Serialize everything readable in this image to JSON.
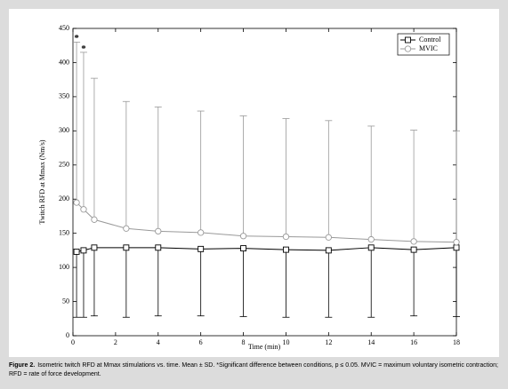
{
  "chart_data": {
    "type": "line",
    "x_label": "Time (min)",
    "y_label": "Twitch RFD at Mmax (Nm/s)",
    "x": [
      0.17,
      0.5,
      1,
      2.5,
      4,
      6,
      8,
      10,
      12,
      14,
      16,
      18
    ],
    "series": [
      {
        "name": "Control",
        "color": "#000000",
        "marker": "square",
        "error_direction": "down",
        "values": [
          123,
          125,
          129,
          129,
          129,
          127,
          128,
          126,
          125,
          129,
          126,
          129
        ],
        "errors": [
          96,
          98,
          100,
          102,
          100,
          98,
          100,
          99,
          98,
          102,
          97,
          101
        ]
      },
      {
        "name": "MVIC",
        "color": "#999999",
        "marker": "circle",
        "error_direction": "up",
        "values": [
          195,
          185,
          170,
          157,
          153,
          151,
          146,
          145,
          144,
          141,
          138,
          137
        ],
        "errors": [
          235,
          230,
          207,
          186,
          182,
          178,
          176,
          173,
          171,
          166,
          163,
          163
        ]
      }
    ],
    "annotations": [
      {
        "text": "*",
        "x": 0.17,
        "y": 440
      },
      {
        "text": "*",
        "x": 0.5,
        "y": 425
      }
    ],
    "xlim": [
      0,
      18
    ],
    "xticks": [
      0,
      2,
      4,
      6,
      8,
      10,
      12,
      14,
      16,
      18
    ],
    "ylim": [
      0,
      450
    ],
    "yticks": [
      0,
      50,
      100,
      150,
      200,
      250,
      300,
      350,
      400,
      450
    ],
    "legend": "upper right",
    "grid": false
  },
  "caption": {
    "label": "Figure 2.",
    "text": "Isometric twitch RFD at Mmax stimulations vs. time. Mean ± SD. *Significant difference between conditions, p ≤ 0.05. MVIC = maximum voluntary isometric contraction; RFD = rate of force development."
  }
}
